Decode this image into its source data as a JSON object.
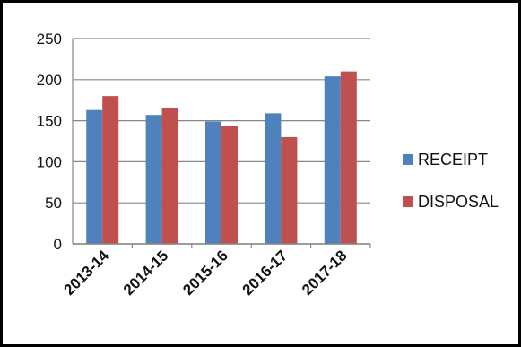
{
  "chart_data": {
    "type": "bar",
    "categories": [
      "2013-14",
      "2014-15",
      "2015-16",
      "2016-17",
      "2017-18"
    ],
    "series": [
      {
        "name": "RECEIPT",
        "values": [
          163,
          157,
          149,
          159,
          204
        ],
        "color": "#4f81bd"
      },
      {
        "name": "DISPOSAL",
        "values": [
          180,
          165,
          144,
          130,
          210
        ],
        "color": "#c0504d"
      }
    ],
    "y_ticks": [
      "0",
      "50",
      "100",
      "150",
      "200",
      "250"
    ],
    "ylim": [
      0,
      250
    ],
    "grid": true,
    "legend_position": "right",
    "title": "",
    "xlabel": "",
    "ylabel": ""
  }
}
